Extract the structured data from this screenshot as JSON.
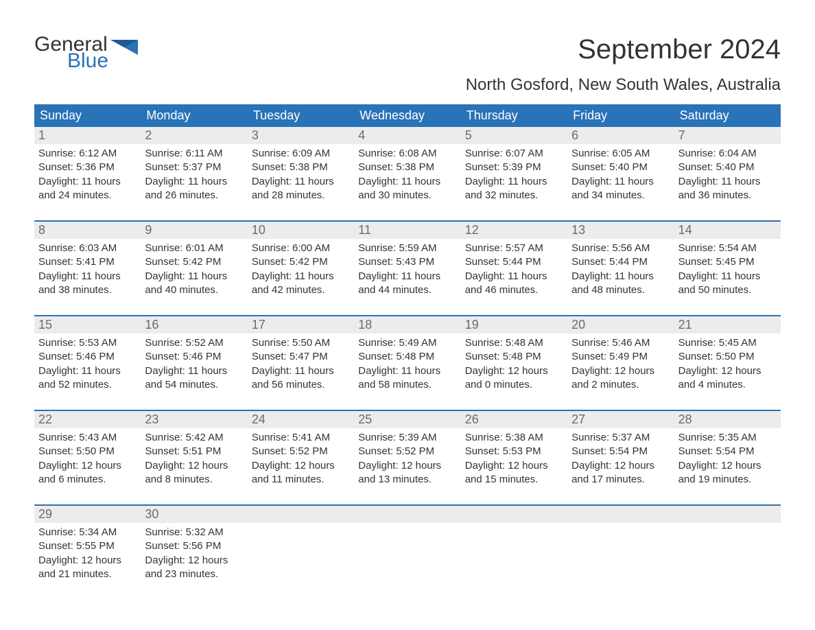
{
  "logo": {
    "general": "General",
    "blue": "Blue",
    "flag_color": "#2973b8"
  },
  "title": "September 2024",
  "subtitle": "North Gosford, New South Wales, Australia",
  "colors": {
    "header_bg": "#2973b8",
    "header_text": "#ffffff",
    "daynum_bg": "#ececec",
    "daynum_text": "#6b6b6b",
    "body_text": "#333333",
    "week_border": "#2973b8",
    "page_bg": "#ffffff"
  },
  "typography": {
    "title_fontsize": 40,
    "subtitle_fontsize": 24,
    "dayhead_fontsize": 18,
    "daynum_fontsize": 18,
    "body_fontsize": 15,
    "font_family": "Arial"
  },
  "layout": {
    "columns": 7,
    "rows": 5
  },
  "day_headers": [
    "Sunday",
    "Monday",
    "Tuesday",
    "Wednesday",
    "Thursday",
    "Friday",
    "Saturday"
  ],
  "weeks": [
    [
      {
        "n": "1",
        "sunrise": "Sunrise: 6:12 AM",
        "sunset": "Sunset: 5:36 PM",
        "d1": "Daylight: 11 hours",
        "d2": "and 24 minutes."
      },
      {
        "n": "2",
        "sunrise": "Sunrise: 6:11 AM",
        "sunset": "Sunset: 5:37 PM",
        "d1": "Daylight: 11 hours",
        "d2": "and 26 minutes."
      },
      {
        "n": "3",
        "sunrise": "Sunrise: 6:09 AM",
        "sunset": "Sunset: 5:38 PM",
        "d1": "Daylight: 11 hours",
        "d2": "and 28 minutes."
      },
      {
        "n": "4",
        "sunrise": "Sunrise: 6:08 AM",
        "sunset": "Sunset: 5:38 PM",
        "d1": "Daylight: 11 hours",
        "d2": "and 30 minutes."
      },
      {
        "n": "5",
        "sunrise": "Sunrise: 6:07 AM",
        "sunset": "Sunset: 5:39 PM",
        "d1": "Daylight: 11 hours",
        "d2": "and 32 minutes."
      },
      {
        "n": "6",
        "sunrise": "Sunrise: 6:05 AM",
        "sunset": "Sunset: 5:40 PM",
        "d1": "Daylight: 11 hours",
        "d2": "and 34 minutes."
      },
      {
        "n": "7",
        "sunrise": "Sunrise: 6:04 AM",
        "sunset": "Sunset: 5:40 PM",
        "d1": "Daylight: 11 hours",
        "d2": "and 36 minutes."
      }
    ],
    [
      {
        "n": "8",
        "sunrise": "Sunrise: 6:03 AM",
        "sunset": "Sunset: 5:41 PM",
        "d1": "Daylight: 11 hours",
        "d2": "and 38 minutes."
      },
      {
        "n": "9",
        "sunrise": "Sunrise: 6:01 AM",
        "sunset": "Sunset: 5:42 PM",
        "d1": "Daylight: 11 hours",
        "d2": "and 40 minutes."
      },
      {
        "n": "10",
        "sunrise": "Sunrise: 6:00 AM",
        "sunset": "Sunset: 5:42 PM",
        "d1": "Daylight: 11 hours",
        "d2": "and 42 minutes."
      },
      {
        "n": "11",
        "sunrise": "Sunrise: 5:59 AM",
        "sunset": "Sunset: 5:43 PM",
        "d1": "Daylight: 11 hours",
        "d2": "and 44 minutes."
      },
      {
        "n": "12",
        "sunrise": "Sunrise: 5:57 AM",
        "sunset": "Sunset: 5:44 PM",
        "d1": "Daylight: 11 hours",
        "d2": "and 46 minutes."
      },
      {
        "n": "13",
        "sunrise": "Sunrise: 5:56 AM",
        "sunset": "Sunset: 5:44 PM",
        "d1": "Daylight: 11 hours",
        "d2": "and 48 minutes."
      },
      {
        "n": "14",
        "sunrise": "Sunrise: 5:54 AM",
        "sunset": "Sunset: 5:45 PM",
        "d1": "Daylight: 11 hours",
        "d2": "and 50 minutes."
      }
    ],
    [
      {
        "n": "15",
        "sunrise": "Sunrise: 5:53 AM",
        "sunset": "Sunset: 5:46 PM",
        "d1": "Daylight: 11 hours",
        "d2": "and 52 minutes."
      },
      {
        "n": "16",
        "sunrise": "Sunrise: 5:52 AM",
        "sunset": "Sunset: 5:46 PM",
        "d1": "Daylight: 11 hours",
        "d2": "and 54 minutes."
      },
      {
        "n": "17",
        "sunrise": "Sunrise: 5:50 AM",
        "sunset": "Sunset: 5:47 PM",
        "d1": "Daylight: 11 hours",
        "d2": "and 56 minutes."
      },
      {
        "n": "18",
        "sunrise": "Sunrise: 5:49 AM",
        "sunset": "Sunset: 5:48 PM",
        "d1": "Daylight: 11 hours",
        "d2": "and 58 minutes."
      },
      {
        "n": "19",
        "sunrise": "Sunrise: 5:48 AM",
        "sunset": "Sunset: 5:48 PM",
        "d1": "Daylight: 12 hours",
        "d2": "and 0 minutes."
      },
      {
        "n": "20",
        "sunrise": "Sunrise: 5:46 AM",
        "sunset": "Sunset: 5:49 PM",
        "d1": "Daylight: 12 hours",
        "d2": "and 2 minutes."
      },
      {
        "n": "21",
        "sunrise": "Sunrise: 5:45 AM",
        "sunset": "Sunset: 5:50 PM",
        "d1": "Daylight: 12 hours",
        "d2": "and 4 minutes."
      }
    ],
    [
      {
        "n": "22",
        "sunrise": "Sunrise: 5:43 AM",
        "sunset": "Sunset: 5:50 PM",
        "d1": "Daylight: 12 hours",
        "d2": "and 6 minutes."
      },
      {
        "n": "23",
        "sunrise": "Sunrise: 5:42 AM",
        "sunset": "Sunset: 5:51 PM",
        "d1": "Daylight: 12 hours",
        "d2": "and 8 minutes."
      },
      {
        "n": "24",
        "sunrise": "Sunrise: 5:41 AM",
        "sunset": "Sunset: 5:52 PM",
        "d1": "Daylight: 12 hours",
        "d2": "and 11 minutes."
      },
      {
        "n": "25",
        "sunrise": "Sunrise: 5:39 AM",
        "sunset": "Sunset: 5:52 PM",
        "d1": "Daylight: 12 hours",
        "d2": "and 13 minutes."
      },
      {
        "n": "26",
        "sunrise": "Sunrise: 5:38 AM",
        "sunset": "Sunset: 5:53 PM",
        "d1": "Daylight: 12 hours",
        "d2": "and 15 minutes."
      },
      {
        "n": "27",
        "sunrise": "Sunrise: 5:37 AM",
        "sunset": "Sunset: 5:54 PM",
        "d1": "Daylight: 12 hours",
        "d2": "and 17 minutes."
      },
      {
        "n": "28",
        "sunrise": "Sunrise: 5:35 AM",
        "sunset": "Sunset: 5:54 PM",
        "d1": "Daylight: 12 hours",
        "d2": "and 19 minutes."
      }
    ],
    [
      {
        "n": "29",
        "sunrise": "Sunrise: 5:34 AM",
        "sunset": "Sunset: 5:55 PM",
        "d1": "Daylight: 12 hours",
        "d2": "and 21 minutes."
      },
      {
        "n": "30",
        "sunrise": "Sunrise: 5:32 AM",
        "sunset": "Sunset: 5:56 PM",
        "d1": "Daylight: 12 hours",
        "d2": "and 23 minutes."
      },
      null,
      null,
      null,
      null,
      null
    ]
  ]
}
